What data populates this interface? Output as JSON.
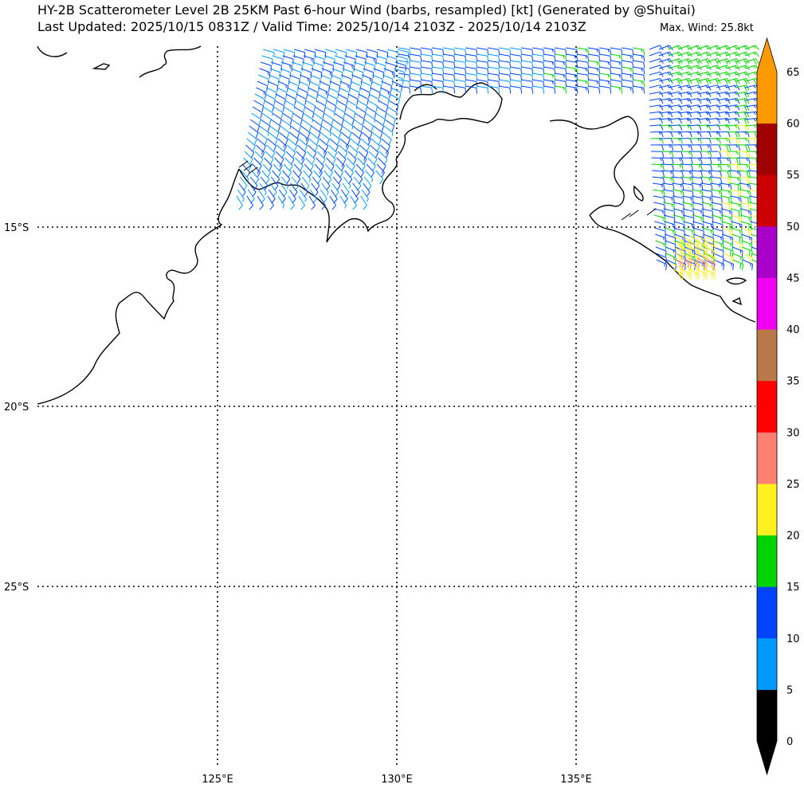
{
  "title_line1": "HY-2B Scatterometer Level 2B 25KM Past 6-hour Wind (barbs, resampled) [kt] (Generated by @Shuitai)",
  "title_line2": "Last Updated: 2025/10/15 0831Z / Valid Time: 2025/10/14 2103Z - 2025/10/14 2103Z",
  "max_wind": "Max. Wind: 25.8kt",
  "lat_labels": [
    "15°S",
    "20°S",
    "25°S"
  ],
  "lon_labels": [
    "125°E",
    "130°E",
    "135°E"
  ],
  "colorbar": {
    "ticks": [
      "0",
      "5",
      "10",
      "15",
      "20",
      "25",
      "30",
      "35",
      "40",
      "45",
      "50",
      "55",
      "60",
      "65"
    ],
    "colors": [
      "#000000",
      "#0099ff",
      "#0044ff",
      "#00d400",
      "#fff020",
      "#ff8070",
      "#ff0000",
      "#b87848",
      "#f000f0",
      "#a800c8",
      "#cc0000",
      "#a00000",
      "#ff9900"
    ]
  },
  "map": {
    "extent_lon": [
      120.0,
      140.0
    ],
    "extent_lat": [
      -30.0,
      -10.5
    ],
    "gridlines_lon": [
      125,
      130,
      135
    ],
    "gridlines_lat": [
      -15,
      -20,
      -25
    ]
  }
}
